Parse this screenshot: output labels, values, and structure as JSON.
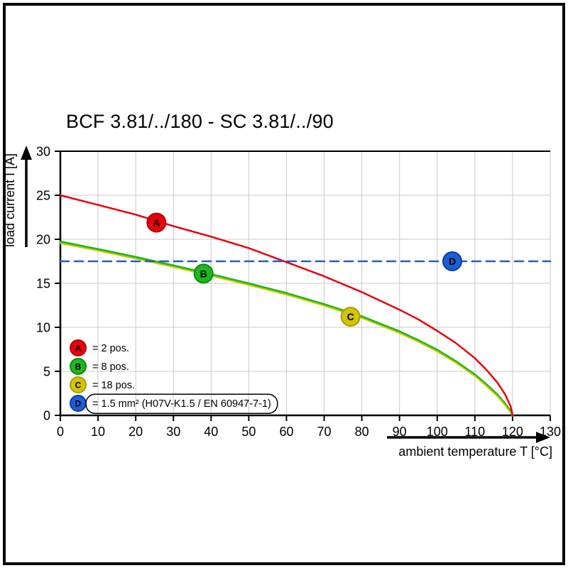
{
  "chart_data": {
    "type": "line",
    "title": "BCF 3.81/../180 - SC 3.81/../90",
    "xlabel": "ambient temperature T [°C]",
    "ylabel": "load current I [A]",
    "xlim": [
      0,
      130
    ],
    "ylim": [
      0,
      30
    ],
    "xticks": [
      0,
      10,
      20,
      30,
      40,
      50,
      60,
      70,
      80,
      90,
      100,
      110,
      120,
      130
    ],
    "yticks": [
      0,
      5,
      10,
      15,
      20,
      25,
      30
    ],
    "grid": true,
    "legend_position": "lower-left",
    "series": [
      {
        "id": "A",
        "name": "2 pos.",
        "color": "#e8000b",
        "ring": "#b50008",
        "style": "solid",
        "marker_at": {
          "x": 25.5,
          "y": 21.9
        },
        "points": [
          [
            0,
            25
          ],
          [
            10,
            23.9
          ],
          [
            20,
            22.8
          ],
          [
            30,
            21.5
          ],
          [
            40,
            20.3
          ],
          [
            50,
            19.0
          ],
          [
            60,
            17.4
          ],
          [
            70,
            15.8
          ],
          [
            80,
            14.0
          ],
          [
            90,
            12.0
          ],
          [
            95,
            10.9
          ],
          [
            100,
            9.6
          ],
          [
            105,
            8.2
          ],
          [
            110,
            6.5
          ],
          [
            113,
            5.2
          ],
          [
            116,
            3.7
          ],
          [
            118,
            2.4
          ],
          [
            119.5,
            1.0
          ],
          [
            120,
            0
          ]
        ]
      },
      {
        "id": "B",
        "name": "8 pos.",
        "color": "#1db81d",
        "ring": "#0f870f",
        "style": "solid",
        "marker_at": {
          "x": 38,
          "y": 16.1
        },
        "points": [
          [
            0,
            19.7
          ],
          [
            10,
            18.85
          ],
          [
            20,
            17.95
          ],
          [
            30,
            17.0
          ],
          [
            40,
            16.0
          ],
          [
            50,
            14.95
          ],
          [
            60,
            13.85
          ],
          [
            70,
            12.6
          ],
          [
            80,
            11.2
          ],
          [
            90,
            9.5
          ],
          [
            95,
            8.5
          ],
          [
            100,
            7.4
          ],
          [
            105,
            6.1
          ],
          [
            110,
            4.6
          ],
          [
            113,
            3.5
          ],
          [
            116,
            2.3
          ],
          [
            118,
            1.3
          ],
          [
            119.5,
            0.4
          ],
          [
            120,
            0
          ]
        ]
      },
      {
        "id": "C",
        "name": "18 pos.",
        "color": "#d2c400",
        "ring": "#a89d00",
        "style": "solid",
        "marker_at": {
          "x": 77,
          "y": 11.2
        },
        "points": [
          [
            0,
            19.55
          ],
          [
            10,
            18.7
          ],
          [
            20,
            17.8
          ],
          [
            30,
            16.85
          ],
          [
            40,
            15.85
          ],
          [
            50,
            14.8
          ],
          [
            60,
            13.7
          ],
          [
            70,
            12.45
          ],
          [
            80,
            11.05
          ],
          [
            90,
            9.35
          ],
          [
            95,
            8.35
          ],
          [
            100,
            7.25
          ],
          [
            105,
            5.95
          ],
          [
            110,
            4.45
          ],
          [
            113,
            3.35
          ],
          [
            116,
            2.15
          ],
          [
            118,
            1.15
          ],
          [
            119.5,
            0.3
          ],
          [
            120,
            0
          ]
        ]
      },
      {
        "id": "D",
        "name": "1.5 mm² (H07V-K1.5 / EN 60947-7-1)",
        "color": "#1a5fd6",
        "ring": "#0c3f9e",
        "style": "dashed",
        "marker_at": {
          "x": 104,
          "y": 17.5
        },
        "points": [
          [
            0,
            17.5
          ],
          [
            130,
            17.5
          ]
        ]
      }
    ],
    "legend": [
      {
        "id": "A",
        "color": "#e8000b",
        "ring": "#b50008",
        "label": "= 2 pos.",
        "boxed": false
      },
      {
        "id": "B",
        "color": "#1db81d",
        "ring": "#0f870f",
        "label": "= 8 pos.",
        "boxed": false
      },
      {
        "id": "C",
        "color": "#d2c400",
        "ring": "#a89d00",
        "label": "= 18 pos.",
        "boxed": false
      },
      {
        "id": "D",
        "color": "#1a5fd6",
        "ring": "#0c3f9e",
        "label": "= 1.5 mm² (H07V-K1.5 / EN 60947-7-1)",
        "boxed": true
      }
    ]
  }
}
